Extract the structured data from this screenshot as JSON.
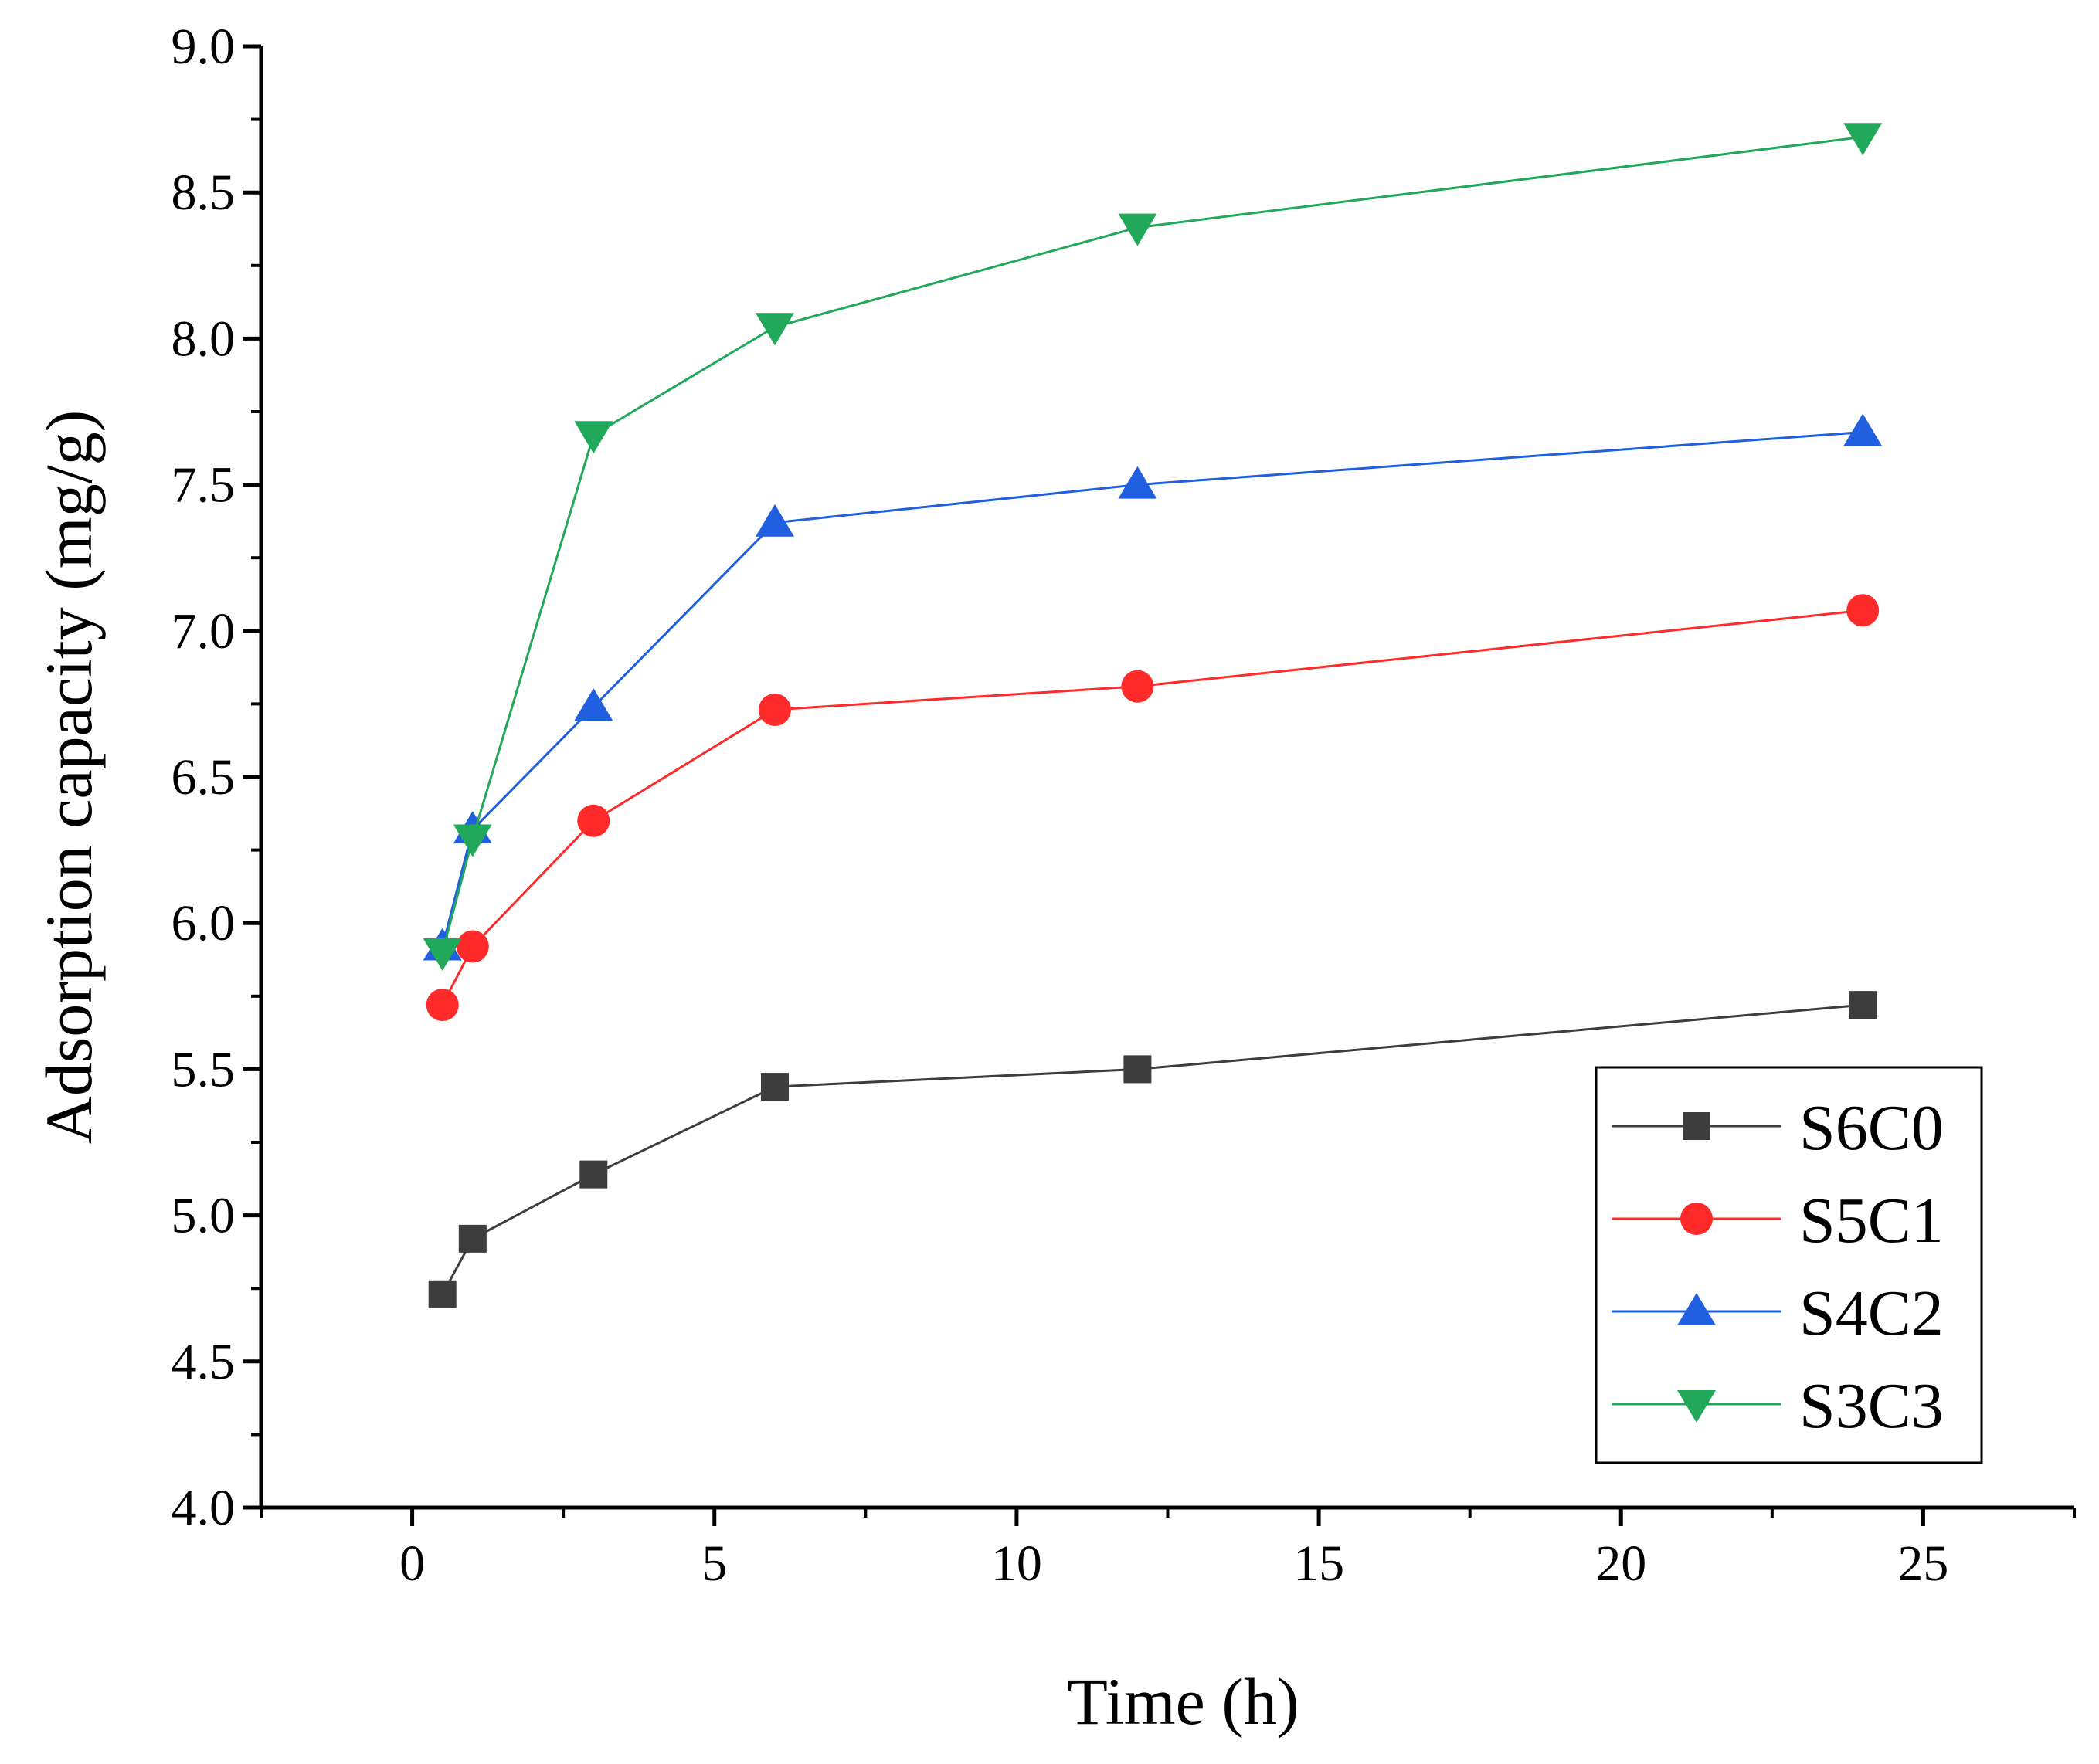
{
  "chart_data": {
    "type": "line",
    "title": "",
    "xlabel": "Time (h)",
    "ylabel": "Adsorption capacity (mg/g)",
    "xlim": [
      -2.5,
      27.5
    ],
    "ylim": [
      4.0,
      9.0
    ],
    "xticks": [
      0,
      5,
      10,
      15,
      20,
      25
    ],
    "xtick_labels": [
      "0",
      "5",
      "10",
      "15",
      "20",
      "25"
    ],
    "yticks": [
      4.0,
      4.5,
      5.0,
      5.5,
      6.0,
      6.5,
      7.0,
      7.5,
      8.0,
      8.5,
      9.0
    ],
    "ytick_labels": [
      "4.0",
      "4.5",
      "5.0",
      "5.5",
      "6.0",
      "6.5",
      "7.0",
      "7.5",
      "8.0",
      "8.5",
      "9.0"
    ],
    "grid": false,
    "legend_position": "bottom-right",
    "x": [
      0.5,
      1,
      3,
      6,
      12,
      24
    ],
    "series": [
      {
        "name": "S6C0",
        "marker": "square",
        "color": "#3d3d3d",
        "values": [
          4.73,
          4.92,
          5.14,
          5.44,
          5.5,
          5.72
        ]
      },
      {
        "name": "S5C1",
        "marker": "circle",
        "color": "#ff2a2a",
        "values": [
          5.72,
          5.92,
          6.35,
          6.73,
          6.81,
          7.07
        ]
      },
      {
        "name": "S4C2",
        "marker": "triangle-up",
        "color": "#1f5fe0",
        "values": [
          5.92,
          6.32,
          6.74,
          7.37,
          7.5,
          7.68
        ]
      },
      {
        "name": "S3C3",
        "marker": "triangle-down",
        "color": "#22a85a",
        "values": [
          5.9,
          6.29,
          7.67,
          8.04,
          8.38,
          8.69
        ]
      }
    ]
  }
}
